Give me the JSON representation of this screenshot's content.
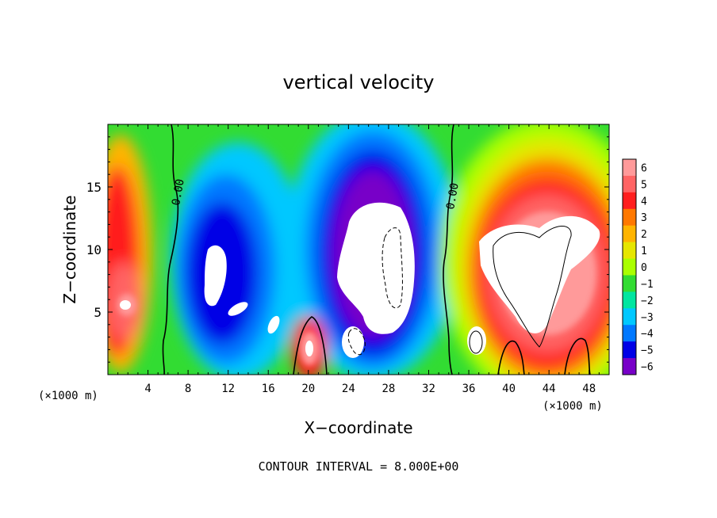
{
  "chart_data": {
    "type": "heatmap",
    "title": "vertical velocity",
    "xlabel": "X−coordinate",
    "ylabel": "Z−coordinate",
    "x_units": "(×1000 m)",
    "y_units": "(×1000 m)",
    "xlim": [
      0,
      50
    ],
    "ylim": [
      0,
      20
    ],
    "x_ticks": [
      4,
      8,
      12,
      16,
      20,
      24,
      28,
      32,
      36,
      40,
      44,
      48
    ],
    "y_ticks": [
      5,
      10,
      15
    ],
    "footer": "CONTOUR INTERVAL = 8.000E+00",
    "contour_label": "0.00",
    "colorbar": {
      "levels": [
        6,
        5,
        4,
        3,
        2,
        1,
        0,
        -1,
        -2,
        -3,
        -4,
        -5,
        -6
      ],
      "labels": [
        "6",
        "5",
        "4",
        "3",
        "2",
        "1",
        "0",
        "−1",
        "−2",
        "−3",
        "−4",
        "−5",
        "−6"
      ],
      "colors": [
        "#ff9a9a",
        "#ff6464",
        "#ff1e1e",
        "#ff7800",
        "#ffb400",
        "#e6e600",
        "#aaff00",
        "#32dc32",
        "#00e6a0",
        "#00c8ff",
        "#0078ff",
        "#0000e6",
        "#7800c8"
      ]
    },
    "features": [
      {
        "name": "updraft-core-east",
        "x": 42,
        "z": 8,
        "sign": "positive",
        "max": ">6"
      },
      {
        "name": "updraft-west",
        "x": 1.5,
        "z": 7.5,
        "sign": "positive",
        "max": ">6"
      },
      {
        "name": "downdraft-core-center",
        "x": 27,
        "z": 8,
        "sign": "negative",
        "min": "<-6"
      },
      {
        "name": "downdraft-west",
        "x": 11,
        "z": 7,
        "sign": "negative",
        "min": "<-6"
      },
      {
        "name": "updraft-low",
        "x": 20,
        "z": 2,
        "sign": "positive",
        "max": ">6"
      }
    ]
  }
}
